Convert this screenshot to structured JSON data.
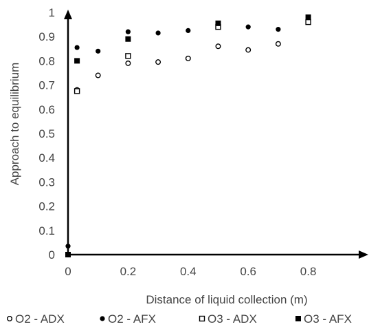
{
  "chart_data": {
    "type": "scatter",
    "title": "",
    "xlabel": "Distance of liquid collection (m)",
    "ylabel": "Approach to equilibrium",
    "xlim": [
      0,
      0.97
    ],
    "ylim": [
      0,
      1
    ],
    "x_ticks": [
      "0",
      "0.2",
      "0.4",
      "0.6",
      "0.8"
    ],
    "y_ticks": [
      "0",
      "0.1",
      "0.2",
      "0.3",
      "0.4",
      "0.5",
      "0.6",
      "0.7",
      "0.8",
      "0.9",
      "1"
    ],
    "grid": false,
    "legend_position": "bottom",
    "series": [
      {
        "name": "O2 - ADX",
        "marker": "open-circle",
        "x": [
          0.03,
          0.1,
          0.2,
          0.3,
          0.4,
          0.5,
          0.6,
          0.7
        ],
        "y": [
          0.68,
          0.74,
          0.79,
          0.795,
          0.81,
          0.86,
          0.845,
          0.87
        ]
      },
      {
        "name": "O2 - AFX",
        "marker": "filled-circle",
        "x": [
          0,
          0.03,
          0.1,
          0.2,
          0.3,
          0.4,
          0.5,
          0.6,
          0.7,
          0.8
        ],
        "y": [
          0.035,
          0.855,
          0.84,
          0.92,
          0.915,
          0.925,
          0.95,
          0.94,
          0.93,
          0.975
        ]
      },
      {
        "name": "O3 - ADX",
        "marker": "open-square",
        "x": [
          0.03,
          0.2,
          0.5,
          0.8
        ],
        "y": [
          0.675,
          0.82,
          0.94,
          0.96
        ]
      },
      {
        "name": "O3 - AFX",
        "marker": "filled-square",
        "x": [
          0,
          0.03,
          0.2,
          0.5,
          0.8
        ],
        "y": [
          0,
          0.8,
          0.89,
          0.955,
          0.98
        ]
      }
    ]
  }
}
